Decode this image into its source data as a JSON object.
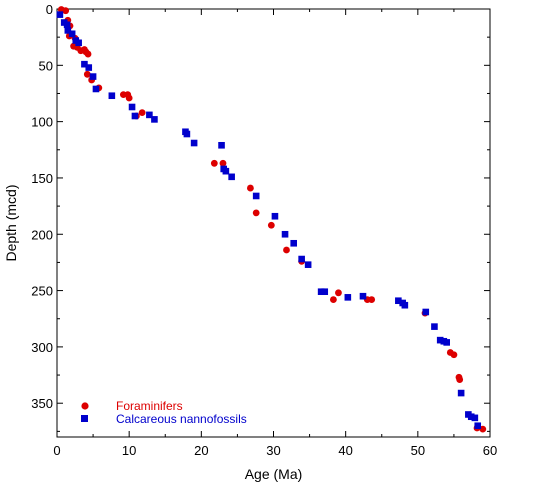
{
  "chart_data": {
    "type": "scatter",
    "xlabel": "Age (Ma)",
    "ylabel": "Depth (mcd)",
    "xlim": [
      0,
      60
    ],
    "ylim": [
      0,
      380
    ],
    "y_inverted": true,
    "x_ticks": [
      "0",
      "10",
      "20",
      "30",
      "40",
      "50",
      "60"
    ],
    "y_ticks": [
      "0",
      "50",
      "100",
      "150",
      "200",
      "250",
      "300",
      "350"
    ],
    "grid": false,
    "legend_position": "bottom-left",
    "series": [
      {
        "name": "Foraminifers",
        "marker": "circle",
        "color": "#dd0000",
        "points": [
          [
            0.6,
            0.5
          ],
          [
            1.2,
            1.5
          ],
          [
            1.5,
            10
          ],
          [
            1.8,
            15
          ],
          [
            1.7,
            24
          ],
          [
            2.5,
            26
          ],
          [
            2.3,
            33
          ],
          [
            2.8,
            34
          ],
          [
            3.3,
            37
          ],
          [
            3.8,
            36
          ],
          [
            4.0,
            38
          ],
          [
            4.3,
            40
          ],
          [
            4.2,
            58
          ],
          [
            4.8,
            63
          ],
          [
            5.8,
            70
          ],
          [
            9.2,
            76
          ],
          [
            9.8,
            76
          ],
          [
            10.0,
            79
          ],
          [
            11.0,
            95
          ],
          [
            11.8,
            92
          ],
          [
            21.8,
            137
          ],
          [
            23.0,
            137
          ],
          [
            26.8,
            159
          ],
          [
            27.6,
            181
          ],
          [
            29.7,
            192
          ],
          [
            31.8,
            214
          ],
          [
            33.9,
            224
          ],
          [
            38.3,
            258
          ],
          [
            39.0,
            252
          ],
          [
            43.0,
            258
          ],
          [
            43.6,
            258
          ],
          [
            51.0,
            270
          ],
          [
            54.5,
            305
          ],
          [
            55.0,
            307
          ],
          [
            55.7,
            327
          ],
          [
            55.8,
            329
          ],
          [
            58.2,
            372
          ],
          [
            59.0,
            373
          ]
        ]
      },
      {
        "name": "Calcareous nannofossils",
        "marker": "square",
        "color": "#0000cc",
        "points": [
          [
            0.4,
            5
          ],
          [
            1.0,
            12
          ],
          [
            1.4,
            14
          ],
          [
            1.5,
            19
          ],
          [
            2.1,
            22
          ],
          [
            2.6,
            28
          ],
          [
            3.0,
            30
          ],
          [
            3.8,
            49
          ],
          [
            4.4,
            52
          ],
          [
            5.0,
            60
          ],
          [
            5.4,
            71
          ],
          [
            7.6,
            77
          ],
          [
            10.4,
            87
          ],
          [
            10.8,
            95
          ],
          [
            12.8,
            94
          ],
          [
            13.5,
            98
          ],
          [
            17.8,
            109
          ],
          [
            18.0,
            111
          ],
          [
            19.0,
            119
          ],
          [
            22.8,
            121
          ],
          [
            23.1,
            142
          ],
          [
            23.4,
            144
          ],
          [
            24.2,
            149
          ],
          [
            27.6,
            166
          ],
          [
            30.2,
            184
          ],
          [
            31.6,
            200
          ],
          [
            32.8,
            208
          ],
          [
            33.9,
            222
          ],
          [
            34.8,
            227
          ],
          [
            36.6,
            251
          ],
          [
            37.1,
            251
          ],
          [
            40.3,
            256
          ],
          [
            42.4,
            255
          ],
          [
            47.3,
            259
          ],
          [
            47.9,
            261
          ],
          [
            48.2,
            263
          ],
          [
            51.1,
            269
          ],
          [
            52.3,
            282
          ],
          [
            53.1,
            294
          ],
          [
            53.6,
            295
          ],
          [
            54.0,
            296
          ],
          [
            56.0,
            341
          ],
          [
            57.0,
            360
          ],
          [
            57.4,
            362
          ],
          [
            57.9,
            363
          ],
          [
            58.3,
            370
          ]
        ]
      }
    ]
  }
}
